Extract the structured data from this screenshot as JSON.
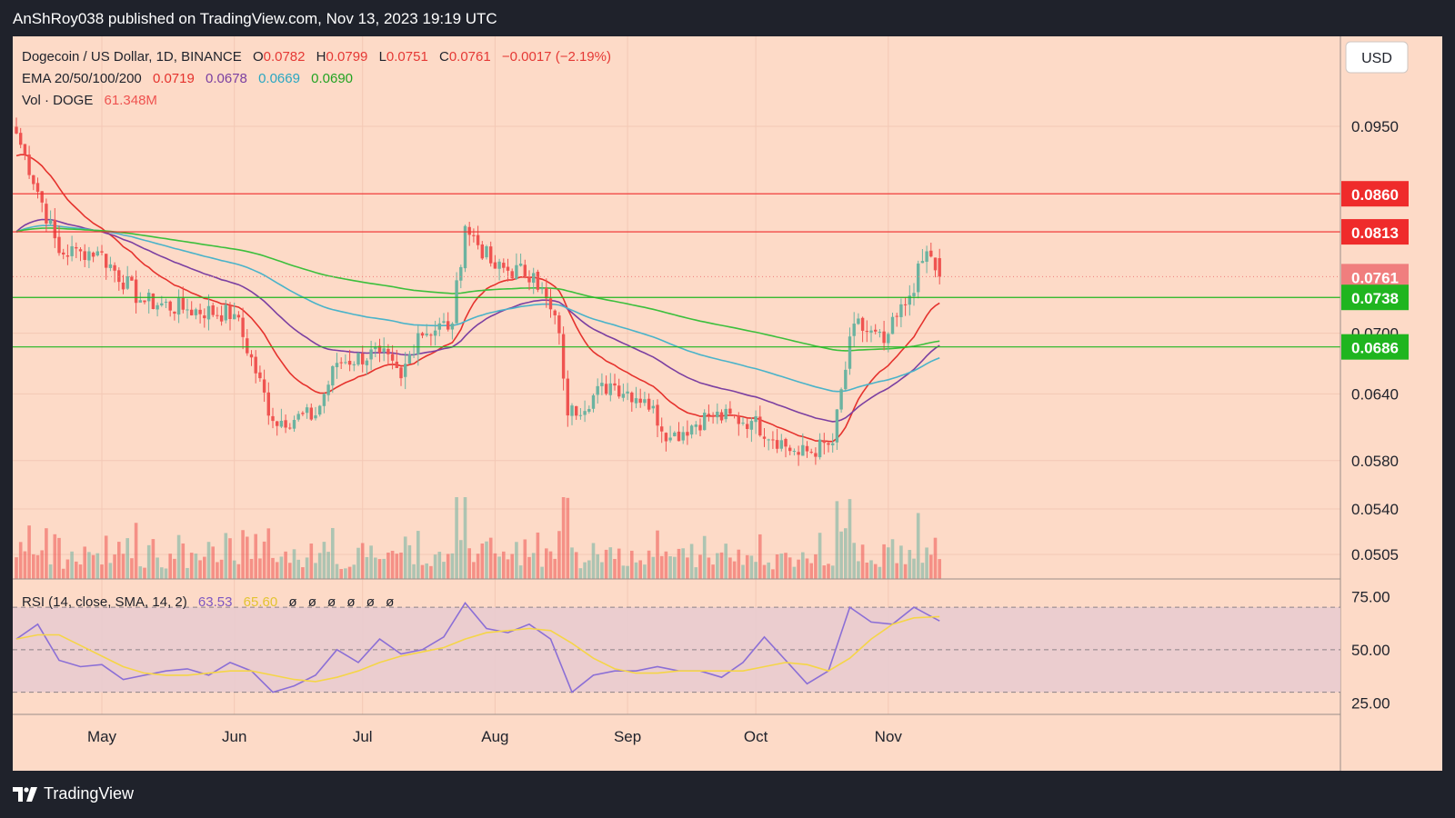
{
  "header": {
    "published": "AnShRoy038 published on TradingView.com, Nov 13, 2023 19:19 UTC"
  },
  "legend": {
    "symbol": "Dogecoin / US Dollar, 1D, BINANCE",
    "o_label": "O",
    "o": "0.0782",
    "h_label": "H",
    "h": "0.0799",
    "l_label": "L",
    "l": "0.0751",
    "c_label": "C",
    "c": "0.0761",
    "change": "−0.0017 (−2.19%)",
    "ema_label": "EMA 20/50/100/200",
    "ema20": "0.0719",
    "ema50": "0.0678",
    "ema100": "0.0669",
    "ema200": "0.0690",
    "vol_label": "Vol · DOGE",
    "vol": "61.348M"
  },
  "currency_button": "USD",
  "footer": {
    "brand": "TradingView"
  },
  "colors": {
    "up": "#6bb3a0",
    "down": "#ef5350",
    "ema20": "#e5322d",
    "ema50": "#7b3fa1",
    "ema100": "#4ab3c9",
    "ema200": "#3cbf3c",
    "rsi": "#8b6fd6",
    "rsi_sma": "#f5d547",
    "background": "#fddac7"
  },
  "chart_data": [
    {
      "type": "candlestick",
      "title": "Dogecoin / US Dollar, 1D, BINANCE",
      "x_ticks": [
        "May",
        "Jun",
        "Jul",
        "Aug",
        "Sep",
        "Oct",
        "Nov"
      ],
      "y_ticks": [
        "0.0950",
        "0.0700",
        "0.0640",
        "0.0580",
        "0.0540",
        "0.0505"
      ],
      "y_scale": "log",
      "ylim": [
        0.0487,
        0.1085
      ],
      "price_lines": [
        {
          "value": 0.086,
          "label": "0.0860",
          "color": "#ef2b2b",
          "style": "line"
        },
        {
          "value": 0.0813,
          "label": "0.0813",
          "color": "#ef2b2b",
          "style": "line"
        },
        {
          "value": 0.0761,
          "label": "0.0761",
          "color": "#f07e7e",
          "style": "dotted"
        },
        {
          "value": 0.0738,
          "label": "0.0738",
          "color": "#1fb51f",
          "style": "line"
        },
        {
          "value": 0.0686,
          "label": "0.0686",
          "color": "#1fb51f",
          "style": "line"
        }
      ],
      "key_closes": [
        {
          "date": "Apr 11",
          "close": 0.094
        },
        {
          "date": "Apr 21",
          "close": 0.0788
        },
        {
          "date": "Apr 26",
          "close": 0.079
        },
        {
          "date": "Apr 30",
          "close": 0.079
        },
        {
          "date": "May 10",
          "close": 0.0735
        },
        {
          "date": "May 21",
          "close": 0.0725
        },
        {
          "date": "Jun 1",
          "close": 0.072
        },
        {
          "date": "Jun 10",
          "close": 0.0615
        },
        {
          "date": "Jun 20",
          "close": 0.062
        },
        {
          "date": "Jun 25",
          "close": 0.067
        },
        {
          "date": "Jul 5",
          "close": 0.068
        },
        {
          "date": "Jul 10",
          "close": 0.0655
        },
        {
          "date": "Jul 14",
          "close": 0.07
        },
        {
          "date": "Jul 22",
          "close": 0.071
        },
        {
          "date": "Jul 25",
          "close": 0.082
        },
        {
          "date": "Aug 1",
          "close": 0.077
        },
        {
          "date": "Aug 10",
          "close": 0.0765
        },
        {
          "date": "Aug 16",
          "close": 0.07
        },
        {
          "date": "Aug 18",
          "close": 0.062
        },
        {
          "date": "Aug 28",
          "close": 0.065
        },
        {
          "date": "Sep 5",
          "close": 0.0635
        },
        {
          "date": "Sep 11",
          "close": 0.06
        },
        {
          "date": "Sep 20",
          "close": 0.062
        },
        {
          "date": "Sep 30",
          "close": 0.0615
        },
        {
          "date": "Oct 11",
          "close": 0.0585
        },
        {
          "date": "Oct 19",
          "close": 0.0595
        },
        {
          "date": "Oct 24",
          "close": 0.071
        },
        {
          "date": "Oct 31",
          "close": 0.069
        },
        {
          "date": "Nov 6",
          "close": 0.074
        },
        {
          "date": "Nov 10",
          "close": 0.079
        },
        {
          "date": "Nov 13",
          "close": 0.0761
        }
      ],
      "ema_series": [
        {
          "name": "EMA 20",
          "last": 0.0719
        },
        {
          "name": "EMA 50",
          "last": 0.0678
        },
        {
          "name": "EMA 100",
          "last": 0.0669
        },
        {
          "name": "EMA 200",
          "last": 0.069
        }
      ],
      "volume_last": "61.348M"
    },
    {
      "type": "line",
      "title": "RSI (14, close, SMA, 14, 2)",
      "header_values": [
        "63.53",
        "65.60"
      ],
      "header_placeholders": [
        "ø",
        "ø",
        "ø",
        "ø",
        "ø",
        "ø"
      ],
      "y_ticks": [
        "75.00",
        "50.00",
        "25.00"
      ],
      "ylim": [
        20,
        82
      ],
      "bands": [
        70,
        50,
        30
      ],
      "series": [
        {
          "name": "RSI",
          "x": [
            "Apr 11",
            "Apr 16",
            "Apr 21",
            "Apr 26",
            "May 1",
            "May 6",
            "May 11",
            "May 16",
            "May 21",
            "May 26",
            "May 31",
            "Jun 5",
            "Jun 10",
            "Jun 15",
            "Jun 20",
            "Jun 25",
            "Jun 30",
            "Jul 5",
            "Jul 10",
            "Jul 15",
            "Jul 20",
            "Jul 25",
            "Jul 30",
            "Aug 4",
            "Aug 9",
            "Aug 14",
            "Aug 19",
            "Aug 24",
            "Aug 29",
            "Sep 3",
            "Sep 8",
            "Sep 13",
            "Sep 18",
            "Sep 23",
            "Sep 28",
            "Oct 3",
            "Oct 8",
            "Oct 13",
            "Oct 18",
            "Oct 23",
            "Oct 28",
            "Nov 2",
            "Nov 7",
            "Nov 13"
          ],
          "values": [
            55,
            62,
            45,
            42,
            43,
            36,
            38,
            40,
            41,
            38,
            44,
            40,
            30,
            33,
            38,
            50,
            44,
            55,
            48,
            50,
            56,
            72,
            60,
            58,
            62,
            55,
            30,
            38,
            40,
            40,
            42,
            40,
            40,
            37,
            44,
            56,
            45,
            34,
            40,
            70,
            63,
            62,
            70,
            63.53
          ]
        },
        {
          "name": "SMA",
          "x": [
            "Apr 11",
            "Apr 16",
            "Apr 21",
            "Apr 26",
            "May 1",
            "May 6",
            "May 11",
            "May 16",
            "May 21",
            "May 26",
            "May 31",
            "Jun 5",
            "Jun 10",
            "Jun 15",
            "Jun 20",
            "Jun 25",
            "Jun 30",
            "Jul 5",
            "Jul 10",
            "Jul 15",
            "Jul 20",
            "Jul 25",
            "Jul 30",
            "Aug 4",
            "Aug 9",
            "Aug 14",
            "Aug 19",
            "Aug 24",
            "Aug 29",
            "Sep 3",
            "Sep 8",
            "Sep 13",
            "Sep 18",
            "Sep 23",
            "Sep 28",
            "Oct 3",
            "Oct 8",
            "Oct 13",
            "Oct 18",
            "Oct 23",
            "Oct 28",
            "Nov 2",
            "Nov 7",
            "Nov 13"
          ],
          "values": [
            55,
            57,
            57,
            52,
            47,
            42,
            39,
            38,
            38,
            39,
            40,
            40,
            38,
            36,
            35,
            37,
            40,
            44,
            47,
            49,
            51,
            55,
            58,
            59,
            60,
            59,
            53,
            46,
            41,
            39,
            39,
            40,
            40,
            40,
            40,
            42,
            44,
            43,
            40,
            46,
            55,
            62,
            65,
            65.6
          ]
        }
      ]
    }
  ]
}
